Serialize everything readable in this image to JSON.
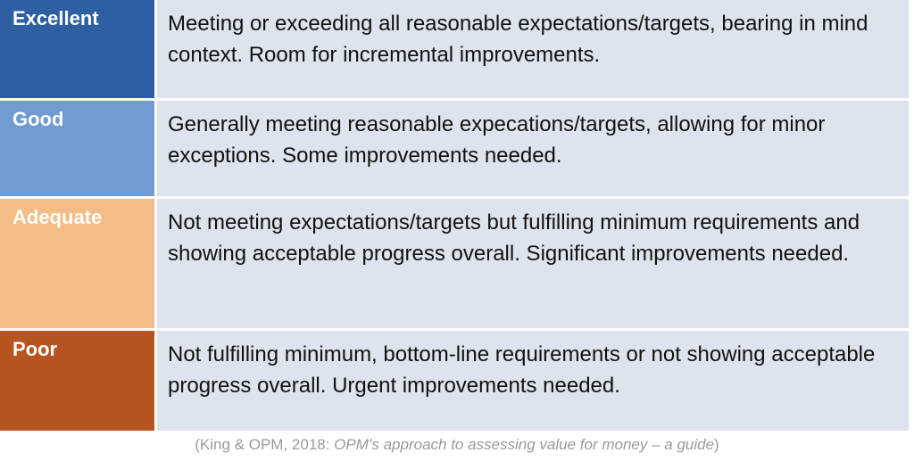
{
  "colors": {
    "excellent_label": "#2e5fa3",
    "good_label": "#6f9bd1",
    "adequate_label": "#f2bd86",
    "poor_label": "#b8541f",
    "description_bg": "#dde4ee",
    "citation_text": "#9a9a9a"
  },
  "rows": [
    {
      "label": "Excellent",
      "description": "Meeting or exceeding all reasonable expectations/targets, bearing in mind context. Room for incremental improvements."
    },
    {
      "label": "Good",
      "description": "Generally meeting reasonable expecations/targets, allowing for minor exceptions. Some improvements needed."
    },
    {
      "label": "Adequate",
      "description": "Not meeting expectations/targets but fulfilling minimum requirements and showing acceptable progress overall. Significant improvements needed."
    },
    {
      "label": "Poor",
      "description": "Not fulfilling minimum, bottom-line requirements or not showing acceptable progress overall. Urgent improvements needed."
    }
  ],
  "citation": {
    "prefix": "(King & OPM, 2018: ",
    "title": "OPM’s approach to assessing value for money – a guide",
    "suffix": ")"
  }
}
